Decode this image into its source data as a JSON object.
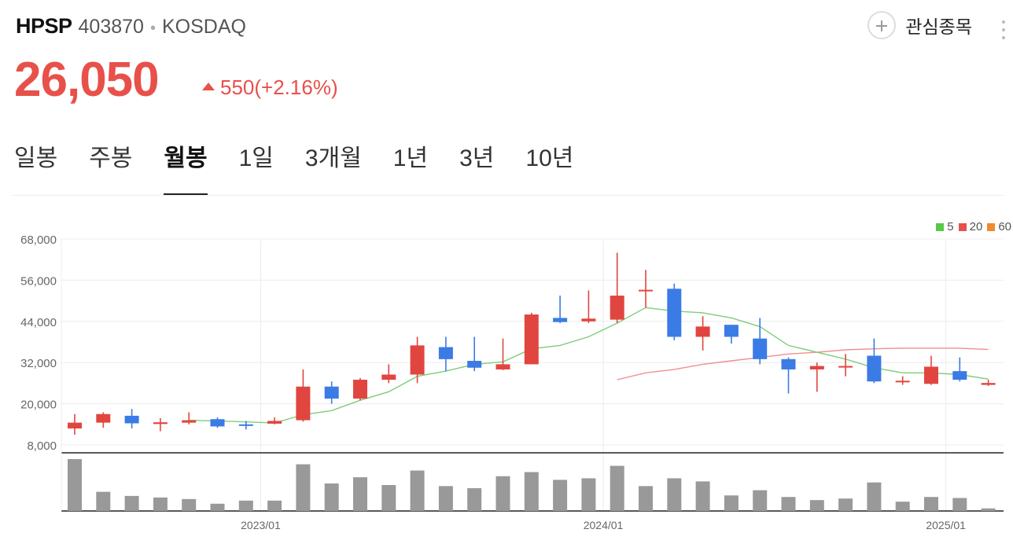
{
  "header": {
    "name": "HPSP",
    "code": "403870",
    "separator": "•",
    "market": "KOSDAQ",
    "price": "26,050",
    "change": "550(+2.16%)",
    "watch_label": "관심종목"
  },
  "colors": {
    "up": "#e0463f",
    "down": "#3a7be6",
    "ma5": "#7fcc7a",
    "ma20": "#ef8f8f",
    "volume": "#999999"
  },
  "tabs": [
    {
      "label": "일봉"
    },
    {
      "label": "주봉"
    },
    {
      "label": "월봉"
    },
    {
      "label": "1일"
    },
    {
      "label": "3개월"
    },
    {
      "label": "1년"
    },
    {
      "label": "3년"
    },
    {
      "label": "10년"
    }
  ],
  "active_tab": 2,
  "legend": [
    {
      "label": "5",
      "color": "#5ac84a"
    },
    {
      "label": "20",
      "color": "#e8504a"
    },
    {
      "label": "60",
      "color": "#f08a2c"
    }
  ],
  "chart_data": {
    "type": "candlestick",
    "ylim": [
      8000,
      68000
    ],
    "y_ticks": [
      "68,000",
      "56,000",
      "44,000",
      "32,000",
      "20,000",
      "8,000"
    ],
    "y_tick_values": [
      68000,
      56000,
      44000,
      32000,
      20000,
      8000
    ],
    "x_ticks": [
      {
        "label": "2023/01",
        "index": 6
      },
      {
        "label": "2024/01",
        "index": 18
      },
      {
        "label": "2025/01",
        "index": 30
      }
    ],
    "candles": [
      {
        "o": 12800,
        "h": 17000,
        "l": 11000,
        "c": 14500
      },
      {
        "o": 14500,
        "h": 17500,
        "l": 13000,
        "c": 17000
      },
      {
        "o": 16500,
        "h": 18500,
        "l": 12800,
        "c": 14300
      },
      {
        "o": 14100,
        "h": 15800,
        "l": 12000,
        "c": 14600
      },
      {
        "o": 14500,
        "h": 17500,
        "l": 14000,
        "c": 15200
      },
      {
        "o": 15500,
        "h": 16000,
        "l": 13000,
        "c": 13400
      },
      {
        "o": 14000,
        "h": 15000,
        "l": 12500,
        "c": 13800
      },
      {
        "o": 14200,
        "h": 16000,
        "l": 14000,
        "c": 15000
      },
      {
        "o": 15200,
        "h": 30000,
        "l": 14800,
        "c": 25000
      },
      {
        "o": 25000,
        "h": 26500,
        "l": 20000,
        "c": 21500
      },
      {
        "o": 21500,
        "h": 27500,
        "l": 21000,
        "c": 27000
      },
      {
        "o": 27000,
        "h": 31500,
        "l": 26000,
        "c": 28500
      },
      {
        "o": 28500,
        "h": 39500,
        "l": 26000,
        "c": 37000
      },
      {
        "o": 36500,
        "h": 39500,
        "l": 29500,
        "c": 33000
      },
      {
        "o": 32500,
        "h": 39500,
        "l": 29500,
        "c": 30500
      },
      {
        "o": 30000,
        "h": 39000,
        "l": 29800,
        "c": 31500
      },
      {
        "o": 31500,
        "h": 46500,
        "l": 31500,
        "c": 46000
      },
      {
        "o": 45000,
        "h": 51500,
        "l": 43500,
        "c": 43800
      },
      {
        "o": 44000,
        "h": 53000,
        "l": 43500,
        "c": 44800
      },
      {
        "o": 44500,
        "h": 64000,
        "l": 43500,
        "c": 51500
      },
      {
        "o": 53000,
        "h": 59000,
        "l": 48000,
        "c": 53200
      },
      {
        "o": 53500,
        "h": 55000,
        "l": 38500,
        "c": 39500
      },
      {
        "o": 39500,
        "h": 45500,
        "l": 35500,
        "c": 42500
      },
      {
        "o": 43000,
        "h": 43000,
        "l": 37500,
        "c": 39500
      },
      {
        "o": 39000,
        "h": 45000,
        "l": 31500,
        "c": 33000
      },
      {
        "o": 33000,
        "h": 33500,
        "l": 23000,
        "c": 30000
      },
      {
        "o": 30000,
        "h": 32000,
        "l": 23500,
        "c": 31000
      },
      {
        "o": 31000,
        "h": 34500,
        "l": 28000,
        "c": 31000
      },
      {
        "o": 34000,
        "h": 39000,
        "l": 26000,
        "c": 26500
      },
      {
        "o": 26500,
        "h": 28000,
        "l": 25500,
        "c": 26700
      },
      {
        "o": 25800,
        "h": 34000,
        "l": 25500,
        "c": 30800
      },
      {
        "o": 29500,
        "h": 33500,
        "l": 26500,
        "c": 27000
      },
      {
        "o": 25500,
        "h": 27000,
        "l": 25200,
        "c": 26050
      }
    ],
    "ma5": [
      null,
      null,
      null,
      null,
      15200,
      15000,
      14700,
      14400,
      16800,
      18000,
      21000,
      23500,
      28000,
      29500,
      31500,
      32200,
      36000,
      37000,
      39500,
      43500,
      48000,
      47000,
      46500,
      45000,
      42500,
      37000,
      35000,
      33000,
      30500,
      29000,
      29000,
      28500,
      27200
    ],
    "ma20": [
      null,
      null,
      null,
      null,
      null,
      null,
      null,
      null,
      null,
      null,
      null,
      null,
      null,
      null,
      null,
      null,
      null,
      null,
      null,
      27000,
      29000,
      30000,
      31500,
      32500,
      33500,
      34500,
      35000,
      35700,
      36000,
      36200,
      36200,
      36200,
      35800
    ],
    "volume": [
      100,
      37,
      29,
      26,
      23,
      14,
      20,
      20,
      90,
      53,
      65,
      50,
      78,
      48,
      44,
      67,
      75,
      60,
      63,
      87,
      48,
      63,
      57,
      30,
      40,
      27,
      21,
      24,
      55,
      18,
      27,
      25,
      5
    ]
  }
}
